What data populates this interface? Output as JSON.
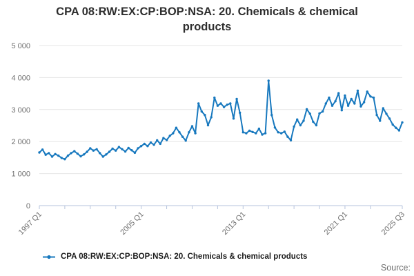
{
  "title": "CPA 08:RW:EX:CP:BOP:NSA: 20. Chemicals & chemical products",
  "title_lines": [
    "CPA 08:RW:EX:CP:BOP:NSA: 20. Chemicals & chemical",
    "products"
  ],
  "source_label": "Source:",
  "legend": {
    "marker": "line-dot-icon",
    "label": "CPA 08:RW:EX:CP:BOP:NSA: 20. Chemicals & chemical products"
  },
  "colors": {
    "line": "#1778be",
    "grid": "#e6e6e6",
    "axis": "#b6c3dc",
    "muted_text": "#6e6e6e",
    "title_text": "#2e2e2e"
  },
  "chart_data": {
    "type": "line",
    "title": "CPA 08:RW:EX:CP:BOP:NSA: 20. Chemicals & chemical products",
    "xlabel": "",
    "ylabel": "",
    "ylim": [
      0,
      5000
    ],
    "grid": "horizontal",
    "legend_position": "bottom",
    "frequency": "quarterly",
    "x_start": "1997 Q1",
    "x_end": "2025 Q3",
    "y_tick_labels": [
      "0",
      "1 000",
      "2 000",
      "3 000",
      "4 000",
      "5 000"
    ],
    "x_tick_every_quarters": 8,
    "x_labeled_ticks": [
      {
        "q": 0,
        "label": "1997 Q1"
      },
      {
        "q": 32,
        "label": "2005 Q1"
      },
      {
        "q": 64,
        "label": "2013 Q1"
      },
      {
        "q": 96,
        "label": "2021 Q1"
      },
      {
        "q": 114,
        "label": "2025 Q3"
      }
    ],
    "series": [
      {
        "name": "CPA 08:RW:EX:CP:BOP:NSA: 20. Chemicals & chemical products",
        "start": "1997 Q1",
        "values": [
          1660,
          1750,
          1590,
          1640,
          1530,
          1610,
          1560,
          1490,
          1450,
          1560,
          1640,
          1700,
          1620,
          1540,
          1600,
          1680,
          1790,
          1720,
          1760,
          1640,
          1530,
          1600,
          1680,
          1780,
          1720,
          1830,
          1760,
          1690,
          1800,
          1730,
          1650,
          1790,
          1860,
          1930,
          1860,
          1970,
          1900,
          2040,
          1930,
          2110,
          2050,
          2180,
          2260,
          2430,
          2290,
          2150,
          2030,
          2290,
          2480,
          2260,
          3190,
          2940,
          2830,
          2510,
          2760,
          3370,
          3120,
          3190,
          3080,
          3150,
          3190,
          2720,
          3330,
          2900,
          2290,
          2260,
          2340,
          2300,
          2260,
          2400,
          2220,
          2260,
          3900,
          2830,
          2440,
          2290,
          2260,
          2310,
          2150,
          2040,
          2470,
          2690,
          2510,
          2650,
          3010,
          2870,
          2620,
          2510,
          2880,
          2940,
          3190,
          3370,
          3120,
          3260,
          3510,
          2980,
          3440,
          3120,
          3330,
          3190,
          3590,
          3100,
          3230,
          3560,
          3410,
          3370,
          2830,
          2650,
          3040,
          2870,
          2720,
          2530,
          2430,
          2350,
          2600
        ]
      }
    ]
  }
}
